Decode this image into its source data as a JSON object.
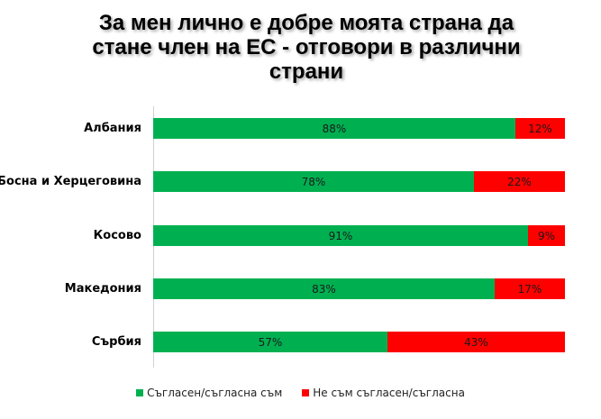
{
  "chart_data": {
    "type": "bar",
    "orientation": "horizontal",
    "stacked": true,
    "title": "За мен лично е добре моята страна да стане член на ЕС - отговори в различни страни",
    "title_lines": [
      "За мен лично е добре моята страна да",
      "стане член на ЕС - отговори в различни",
      "страни"
    ],
    "categories": [
      "Албания",
      "Босна и Херцеговина",
      "Косово",
      "Македония",
      "Сърбия"
    ],
    "series": [
      {
        "name": "Съгласен/съгласна съм",
        "color": "#00B050",
        "values": [
          88,
          78,
          91,
          83,
          57
        ]
      },
      {
        "name": "Не съм съгласен/съгласна",
        "color": "#FF0000",
        "values": [
          12,
          22,
          9,
          17,
          43
        ]
      }
    ],
    "labels": [
      [
        "88%",
        "12%"
      ],
      [
        "78%",
        "22%"
      ],
      [
        "91%",
        "9%"
      ],
      [
        "83%",
        "17%"
      ],
      [
        "57%",
        "43%"
      ]
    ],
    "xlim": [
      0,
      100
    ],
    "grid": false,
    "legend_position": "bottom"
  }
}
